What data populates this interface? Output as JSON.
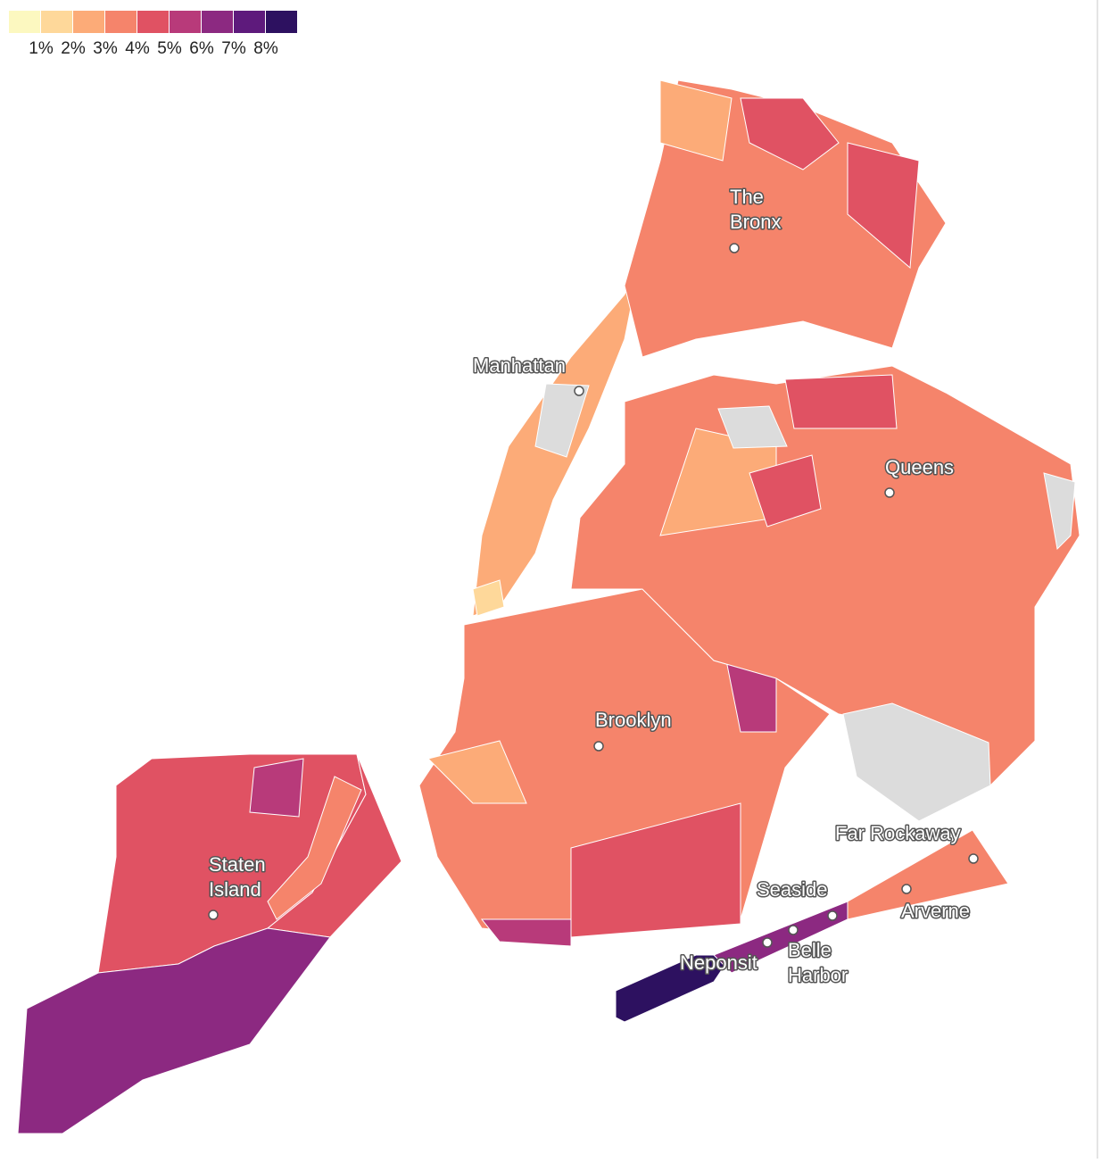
{
  "legend": {
    "colors": [
      "#fcf8c0",
      "#fed89a",
      "#fcab78",
      "#f5846b",
      "#e05263",
      "#b83a7a",
      "#8c2981",
      "#5e1a7c",
      "#2d1160"
    ],
    "ticks": [
      {
        "value": 1,
        "label": "1%"
      },
      {
        "value": 2,
        "label": "2%"
      },
      {
        "value": 3,
        "label": "3%"
      },
      {
        "value": 4,
        "label": "4%"
      },
      {
        "value": 5,
        "label": "5%"
      },
      {
        "value": 6,
        "label": "6%"
      },
      {
        "value": 7,
        "label": "7%"
      },
      {
        "value": 8,
        "label": "8%"
      }
    ]
  },
  "regions": [
    {
      "value": 4.5
    },
    {
      "value": 4.5
    },
    {
      "value": 3.5
    },
    {
      "value": 6.5
    },
    {
      "value": 5.5
    },
    {
      "value": 3.5
    },
    {
      "value": 5.5
    },
    {
      "value": 4.5
    },
    {
      "value": 2.5
    },
    {
      "value": 5.5
    },
    {
      "value": 3.5
    },
    {
      "value": 2.5
    },
    {
      "value": 4.5
    },
    {
      "value": 4.5
    },
    {
      "value": 8.5
    },
    {
      "value": 6.5
    },
    {
      "value": 3.5
    },
    {
      "value": 2.5
    },
    {
      "value": 1.5
    },
    {
      "value": 3.5
    },
    {
      "value": 4.5
    },
    {
      "value": 4.5
    },
    {
      "value": 2.5
    }
  ],
  "places": [
    {
      "lines": [
        "The",
        "Bronx"
      ]
    },
    {
      "lines": [
        "Manhattan"
      ]
    },
    {
      "lines": [
        "Queens"
      ]
    },
    {
      "lines": [
        "Brooklyn"
      ]
    },
    {
      "lines": [
        "Staten",
        "Island"
      ]
    },
    {
      "lines": [
        "Far Rockaway"
      ]
    },
    {
      "lines": [
        "Seaside"
      ]
    },
    {
      "lines": [
        "Arverne"
      ]
    },
    {
      "lines": [
        "Neponsit"
      ]
    },
    {
      "lines": [
        "Belle",
        "Harbor"
      ]
    }
  ]
}
